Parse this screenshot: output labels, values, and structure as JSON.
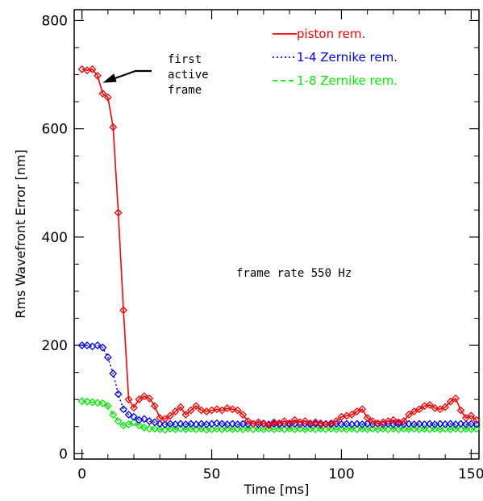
{
  "chart_data": {
    "type": "line",
    "xlabel": "Time [ms]",
    "ylabel": "Rms Wavefront Error [nm]",
    "xlim": [
      -3,
      153
    ],
    "ylim": [
      -10,
      820
    ],
    "xticks": [
      "0",
      "50",
      "100",
      "150"
    ],
    "yticks": [
      "0",
      "200",
      "400",
      "600",
      "800"
    ],
    "grid": false,
    "legend_position": "top-right",
    "annotations": {
      "arrow_note": [
        "first",
        "active",
        "frame"
      ],
      "frame_rate": "frame rate 550 Hz"
    },
    "series": [
      {
        "name": "piston rem.",
        "color": "#ff0000",
        "line_style": "solid",
        "marker": "diamond",
        "x": [
          0,
          2,
          4,
          6,
          8,
          10,
          12,
          14,
          16,
          18,
          20,
          22,
          24,
          26,
          28,
          30,
          32,
          34,
          36,
          38,
          40,
          42,
          44,
          46,
          48,
          50,
          52,
          54,
          56,
          58,
          60,
          62,
          64,
          66,
          68,
          70,
          72,
          74,
          76,
          78,
          80,
          82,
          84,
          86,
          88,
          90,
          92,
          94,
          96,
          98,
          100,
          102,
          104,
          106,
          108,
          110,
          112,
          114,
          116,
          118,
          120,
          122,
          124,
          126,
          128,
          130,
          132,
          134,
          136,
          138,
          140,
          142,
          144,
          146,
          148,
          150,
          152
        ],
        "y": [
          710,
          708,
          710,
          698,
          665,
          658,
          603,
          445,
          265,
          100,
          85,
          100,
          106,
          102,
          88,
          66,
          64,
          70,
          78,
          86,
          72,
          80,
          88,
          80,
          78,
          80,
          82,
          80,
          84,
          82,
          80,
          72,
          60,
          55,
          58,
          56,
          52,
          58,
          56,
          60,
          56,
          62,
          58,
          60,
          56,
          58,
          56,
          54,
          56,
          60,
          68,
          70,
          72,
          78,
          82,
          66,
          60,
          56,
          58,
          60,
          62,
          58,
          60,
          72,
          78,
          82,
          88,
          90,
          84,
          82,
          86,
          96,
          102,
          80,
          66,
          70,
          62
        ]
      },
      {
        "name": "1-4 Zernike rem.",
        "color": "#0000ff",
        "line_style": "dotted",
        "marker": "diamond",
        "x": [
          0,
          2,
          4,
          6,
          8,
          10,
          12,
          14,
          16,
          18,
          20,
          22,
          24,
          26,
          28,
          30,
          32,
          34,
          36,
          38,
          40,
          42,
          44,
          46,
          48,
          50,
          52,
          54,
          56,
          58,
          60,
          62,
          64,
          66,
          68,
          70,
          72,
          74,
          76,
          78,
          80,
          82,
          84,
          86,
          88,
          90,
          92,
          94,
          96,
          98,
          100,
          102,
          104,
          106,
          108,
          110,
          112,
          114,
          116,
          118,
          120,
          122,
          124,
          126,
          128,
          130,
          132,
          134,
          136,
          138,
          140,
          142,
          144,
          146,
          148,
          150,
          152
        ],
        "y": [
          200,
          200,
          198,
          200,
          196,
          178,
          148,
          110,
          82,
          72,
          68,
          62,
          64,
          60,
          58,
          55,
          54,
          55,
          54,
          55,
          54,
          55,
          54,
          55,
          54,
          55,
          56,
          55,
          54,
          55,
          54,
          55,
          54,
          55,
          54,
          55,
          54,
          55,
          54,
          55,
          54,
          55,
          54,
          55,
          54,
          55,
          54,
          55,
          54,
          55,
          54,
          55,
          54,
          55,
          54,
          55,
          54,
          55,
          54,
          55,
          54,
          55,
          54,
          55,
          54,
          55,
          54,
          55,
          54,
          55,
          54,
          55,
          54,
          55,
          54,
          55,
          54
        ]
      },
      {
        "name": "1-8 Zernike rem.",
        "color": "#00ee00",
        "line_style": "dashed",
        "marker": "diamond",
        "x": [
          0,
          2,
          4,
          6,
          8,
          10,
          12,
          14,
          16,
          18,
          20,
          22,
          24,
          26,
          28,
          30,
          32,
          34,
          36,
          38,
          40,
          42,
          44,
          46,
          48,
          50,
          52,
          54,
          56,
          58,
          60,
          62,
          64,
          66,
          68,
          70,
          72,
          74,
          76,
          78,
          80,
          82,
          84,
          86,
          88,
          90,
          92,
          94,
          96,
          98,
          100,
          102,
          104,
          106,
          108,
          110,
          112,
          114,
          116,
          118,
          120,
          122,
          124,
          126,
          128,
          130,
          132,
          134,
          136,
          138,
          140,
          142,
          144,
          146,
          148,
          150,
          152
        ],
        "y": [
          97,
          96,
          95,
          94,
          93,
          88,
          72,
          60,
          52,
          54,
          58,
          52,
          48,
          46,
          46,
          45,
          44,
          46,
          45,
          46,
          45,
          46,
          45,
          46,
          44,
          45,
          46,
          45,
          46,
          45,
          46,
          45,
          46,
          45,
          46,
          45,
          46,
          45,
          46,
          45,
          46,
          45,
          46,
          45,
          46,
          45,
          46,
          45,
          46,
          45,
          46,
          45,
          46,
          45,
          46,
          45,
          46,
          45,
          46,
          45,
          46,
          45,
          46,
          45,
          46,
          45,
          46,
          45,
          46,
          45,
          46,
          45,
          46,
          45,
          46,
          45,
          46
        ]
      }
    ]
  }
}
